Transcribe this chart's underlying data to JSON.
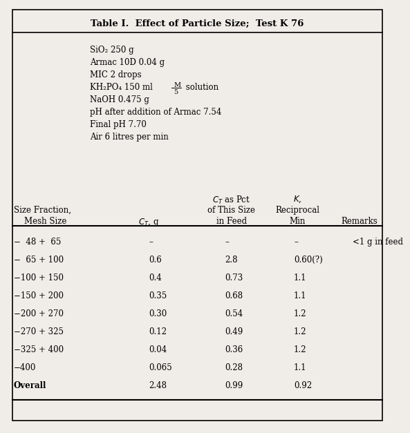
{
  "title": "Table I.  Effect of Particle Size;  Test K 76",
  "bg_color": "#f0ede8",
  "font_size": 8.5,
  "title_font_size": 9.5,
  "conditions_plain": [
    "SiO₂ 250 g",
    "Armac 10D 0.04 g",
    "MIC 2 drops",
    "KH₂PO₄ 150 ml",
    "NaOH 0.475 g",
    "pH after addition of Armac 7.54",
    "Final pH 7.70",
    "Air 6 litres per min"
  ],
  "rows": [
    [
      "−  48 +  65",
      "–",
      "–",
      "–",
      "<1 g in feed"
    ],
    [
      "−  65 + 100",
      "0.6",
      "2.8",
      "0.60(?)",
      ""
    ],
    [
      "−100 + 150",
      "0.4",
      "0.73",
      "1.1",
      ""
    ],
    [
      "−150 + 200",
      "0.35",
      "0.68",
      "1.1",
      ""
    ],
    [
      "−200 + 270",
      "0.30",
      "0.54",
      "1.2",
      ""
    ],
    [
      "−270 + 325",
      "0.12",
      "0.49",
      "1.2",
      ""
    ],
    [
      "−325 + 400",
      "0.04",
      "0.36",
      "1.2",
      ""
    ],
    [
      "−400",
      "0.065",
      "0.28",
      "1.1",
      ""
    ],
    [
      "Overall",
      "2.48",
      "0.99",
      "0.92",
      ""
    ]
  ]
}
